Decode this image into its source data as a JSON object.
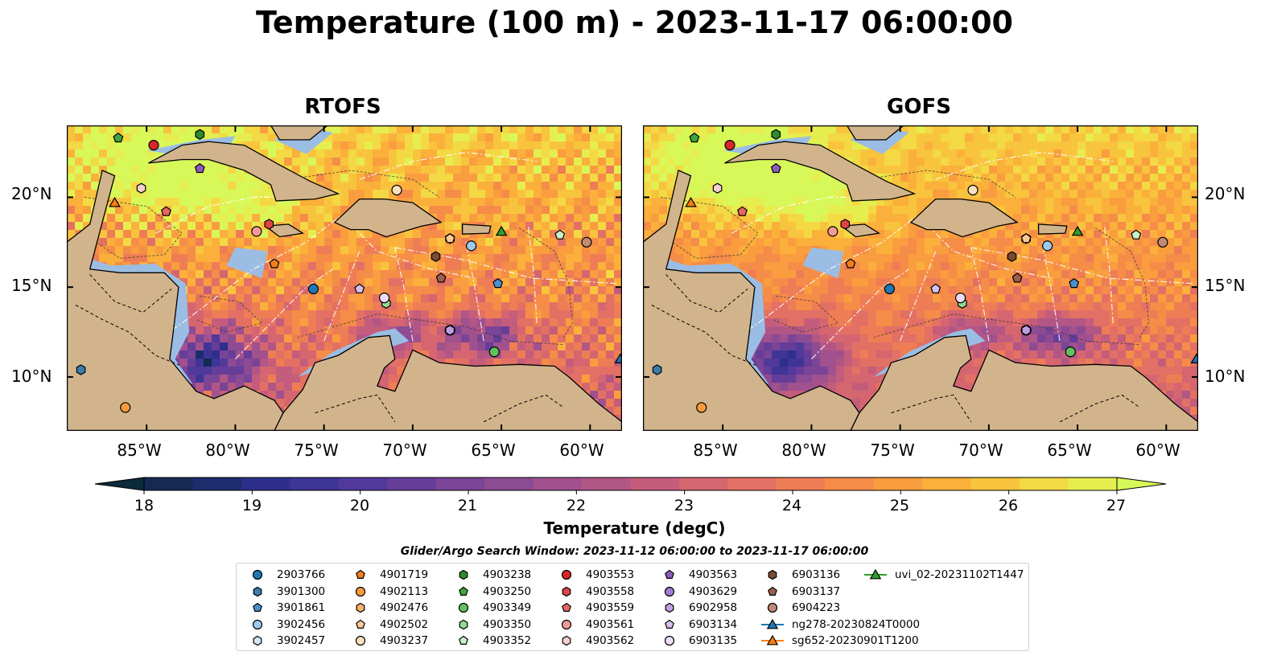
{
  "title": "Temperature (100 m) - 2023-11-17 06:00:00",
  "panels": [
    {
      "title": "RTOFS"
    },
    {
      "title": "GOFS"
    }
  ],
  "axes": {
    "lat_labels": [
      "20°N",
      "15°N",
      "10°N"
    ],
    "lon_labels": [
      "85°W",
      "80°W",
      "75°W",
      "70°W",
      "65°W",
      "60°W"
    ],
    "lon_range": [
      -89.5,
      -58.2
    ],
    "lat_range": [
      7.0,
      24.0
    ]
  },
  "colorbar": {
    "label": "Temperature (degC)",
    "ticks": [
      "18",
      "19",
      "20",
      "21",
      "22",
      "23",
      "24",
      "25",
      "26",
      "27"
    ],
    "range": [
      18,
      27
    ],
    "extend": "both",
    "colors": [
      "#0b2a3b",
      "#142a52",
      "#1c2d6e",
      "#2d2f8a",
      "#3e3596",
      "#51399b",
      "#663d99",
      "#7a4497",
      "#8d4b93",
      "#a0518e",
      "#b25686",
      "#c45d7c",
      "#d56670",
      "#e37064",
      "#ee7d55",
      "#f58c48",
      "#f99d3f",
      "#fbb03b",
      "#f9c43d",
      "#f3d944",
      "#e6ee4f",
      "#d8f85a"
    ]
  },
  "search_window": "Glider/Argo Search Window: 2023-11-12 06:00:00 to 2023-11-17 06:00:00",
  "legend": [
    {
      "label": "2903766",
      "marker": "circle",
      "color": "#1f77b4"
    },
    {
      "label": "3901300",
      "marker": "hexagon",
      "color": "#3a7cb0"
    },
    {
      "label": "3901861",
      "marker": "pentagon",
      "color": "#4a90cf"
    },
    {
      "label": "3902456",
      "marker": "circle",
      "color": "#9ec9ea"
    },
    {
      "label": "3902457",
      "marker": "hexagon",
      "color": "#d5e8f6"
    },
    {
      "label": "4901719",
      "marker": "pentagon",
      "color": "#f07f1e"
    },
    {
      "label": "4902113",
      "marker": "circle",
      "color": "#f99a3d"
    },
    {
      "label": "4902476",
      "marker": "hexagon",
      "color": "#fbb26a"
    },
    {
      "label": "4902502",
      "marker": "pentagon",
      "color": "#fcc894"
    },
    {
      "label": "4903237",
      "marker": "circle",
      "color": "#fde0c0"
    },
    {
      "label": "4903238",
      "marker": "hexagon",
      "color": "#2e8b2e"
    },
    {
      "label": "4903250",
      "marker": "pentagon",
      "color": "#3ea63e"
    },
    {
      "label": "4903349",
      "marker": "circle",
      "color": "#5fc25f"
    },
    {
      "label": "4903350",
      "marker": "hexagon",
      "color": "#93d993"
    },
    {
      "label": "4903352",
      "marker": "pentagon",
      "color": "#c9f0c9"
    },
    {
      "label": "4903553",
      "marker": "circle",
      "color": "#d62728"
    },
    {
      "label": "4903558",
      "marker": "hexagon",
      "color": "#e04546"
    },
    {
      "label": "4903559",
      "marker": "pentagon",
      "color": "#ea6667"
    },
    {
      "label": "4903561",
      "marker": "circle",
      "color": "#f29999"
    },
    {
      "label": "4903562",
      "marker": "hexagon",
      "color": "#f8cfcf"
    },
    {
      "label": "4903563",
      "marker": "pentagon",
      "color": "#8a5cbf"
    },
    {
      "label": "4903629",
      "marker": "circle",
      "color": "#a47bd0"
    },
    {
      "label": "6902958",
      "marker": "hexagon",
      "color": "#bea0df"
    },
    {
      "label": "6903134",
      "marker": "pentagon",
      "color": "#d6c0ee"
    },
    {
      "label": "6903135",
      "marker": "circle",
      "color": "#ecdcf8"
    },
    {
      "label": "6903136",
      "marker": "hexagon",
      "color": "#7b4a33"
    },
    {
      "label": "6903137",
      "marker": "pentagon",
      "color": "#9a6048"
    },
    {
      "label": "6904223",
      "marker": "circle",
      "color": "#c08a73"
    },
    {
      "label": "ng278-20230824T0000",
      "marker": "triangle-line",
      "color": "#1f77b4"
    },
    {
      "label": "sg652-20230901T1200",
      "marker": "triangle-line",
      "color": "#ff7f0e"
    },
    {
      "label": "uvi_02-20231102T1447",
      "marker": "triangle-line",
      "color": "#2ca02c"
    }
  ],
  "floats": [
    {
      "label": "2903766",
      "lon": -75.6,
      "lat": 14.9
    },
    {
      "label": "3901300",
      "lon": -88.7,
      "lat": 10.4
    },
    {
      "label": "3901861",
      "lon": -65.2,
      "lat": 15.2
    },
    {
      "label": "3902456",
      "lon": -66.7,
      "lat": 17.3
    },
    {
      "label": "3902457",
      "lon": -67.9,
      "lat": 17.7
    },
    {
      "label": "4901719",
      "lon": -77.8,
      "lat": 16.3
    },
    {
      "label": "4902113",
      "lon": -86.2,
      "lat": 8.3
    },
    {
      "label": "4902476",
      "lon": -70.9,
      "lat": 20.4
    },
    {
      "label": "4902502",
      "lon": -67.9,
      "lat": 17.7
    },
    {
      "label": "4903237",
      "lon": -70.9,
      "lat": 20.4
    },
    {
      "label": "4903238",
      "lon": -82.0,
      "lat": 23.5
    },
    {
      "label": "4903250",
      "lon": -86.6,
      "lat": 23.3
    },
    {
      "label": "4903349",
      "lon": -65.4,
      "lat": 11.4
    },
    {
      "label": "4903350",
      "lon": -71.5,
      "lat": 14.1
    },
    {
      "label": "4903352",
      "lon": -61.7,
      "lat": 17.9
    },
    {
      "label": "4903553",
      "lon": -84.6,
      "lat": 22.9
    },
    {
      "label": "4903558",
      "lon": -78.1,
      "lat": 18.5
    },
    {
      "label": "4903559",
      "lon": -83.9,
      "lat": 19.2
    },
    {
      "label": "4903561",
      "lon": -78.8,
      "lat": 18.1
    },
    {
      "label": "4903562",
      "lon": -85.3,
      "lat": 20.5
    },
    {
      "label": "4903563",
      "lon": -82.0,
      "lat": 21.6
    },
    {
      "label": "4903629",
      "lon": -67.9,
      "lat": 12.6
    },
    {
      "label": "6902958",
      "lon": -67.9,
      "lat": 12.6
    },
    {
      "label": "6903134",
      "lon": -73.0,
      "lat": 14.9
    },
    {
      "label": "6903135",
      "lon": -71.6,
      "lat": 14.4
    },
    {
      "label": "6903136",
      "lon": -68.7,
      "lat": 16.7
    },
    {
      "label": "6903137",
      "lon": -68.4,
      "lat": 15.5
    },
    {
      "label": "6904223",
      "lon": -60.2,
      "lat": 17.5
    },
    {
      "label": "ng278-20230824T0000",
      "lon": -58.3,
      "lat": 11.0
    },
    {
      "label": "sg652-20230901T1200",
      "lon": -86.8,
      "lat": 19.7
    },
    {
      "label": "uvi_02-20231102T1447",
      "lon": -65.0,
      "lat": 18.1
    }
  ]
}
